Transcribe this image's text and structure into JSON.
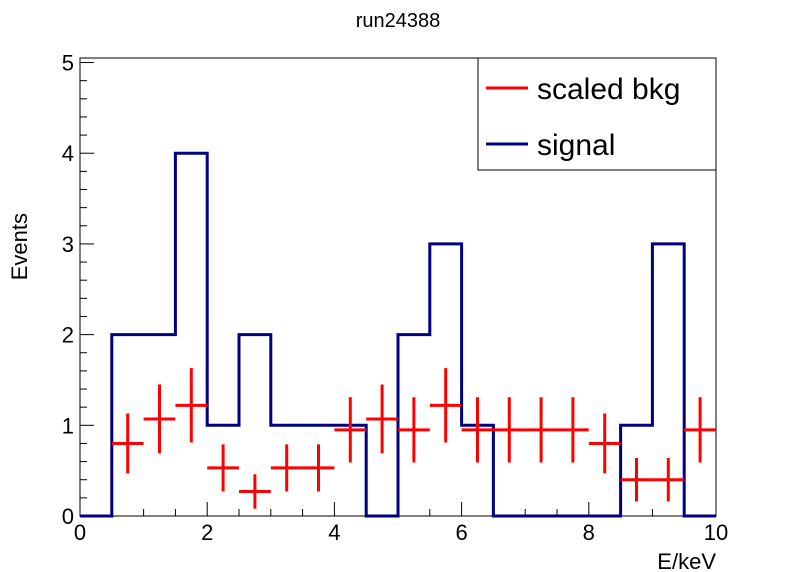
{
  "chart_data": {
    "type": "line",
    "title": "run24388",
    "xlabel": "E/keV",
    "ylabel": "Events",
    "xlim": [
      0,
      10
    ],
    "ylim": [
      0,
      5.05
    ],
    "x_ticks": [
      "0",
      "2",
      "4",
      "6",
      "8",
      "10"
    ],
    "y_ticks": [
      "0",
      "1",
      "2",
      "3",
      "4",
      "5"
    ],
    "legend_position": "top-right",
    "bin_width": 0.5,
    "series": [
      {
        "name": "scaled bkg",
        "style": "points with error bars",
        "color": "#ff0000",
        "x": [
          0.75,
          1.25,
          1.75,
          2.25,
          2.75,
          3.25,
          3.75,
          4.25,
          4.75,
          5.25,
          5.75,
          6.25,
          6.75,
          7.25,
          7.75,
          8.25,
          8.75,
          9.25,
          9.75
        ],
        "y": [
          0.8,
          1.07,
          1.22,
          0.53,
          0.27,
          0.53,
          0.53,
          0.95,
          1.07,
          0.95,
          1.22,
          0.95,
          0.95,
          0.95,
          0.95,
          0.8,
          0.4,
          0.4,
          0.95
        ],
        "yerr": [
          0.33,
          0.38,
          0.41,
          0.26,
          0.19,
          0.26,
          0.26,
          0.36,
          0.38,
          0.36,
          0.41,
          0.36,
          0.36,
          0.36,
          0.36,
          0.33,
          0.24,
          0.24,
          0.36
        ]
      },
      {
        "name": "signal",
        "style": "step histogram",
        "color": "#000080",
        "bin_edges": [
          0,
          0.5,
          1,
          1.5,
          2,
          2.5,
          3,
          3.5,
          4,
          4.5,
          5,
          5.5,
          6,
          6.5,
          7,
          7.5,
          8,
          8.5,
          9,
          9.5,
          10
        ],
        "values": [
          0,
          2,
          2,
          4,
          1,
          2,
          1,
          1,
          1,
          0,
          2,
          3,
          1,
          0,
          0,
          0,
          0,
          1,
          3,
          0
        ]
      }
    ]
  }
}
